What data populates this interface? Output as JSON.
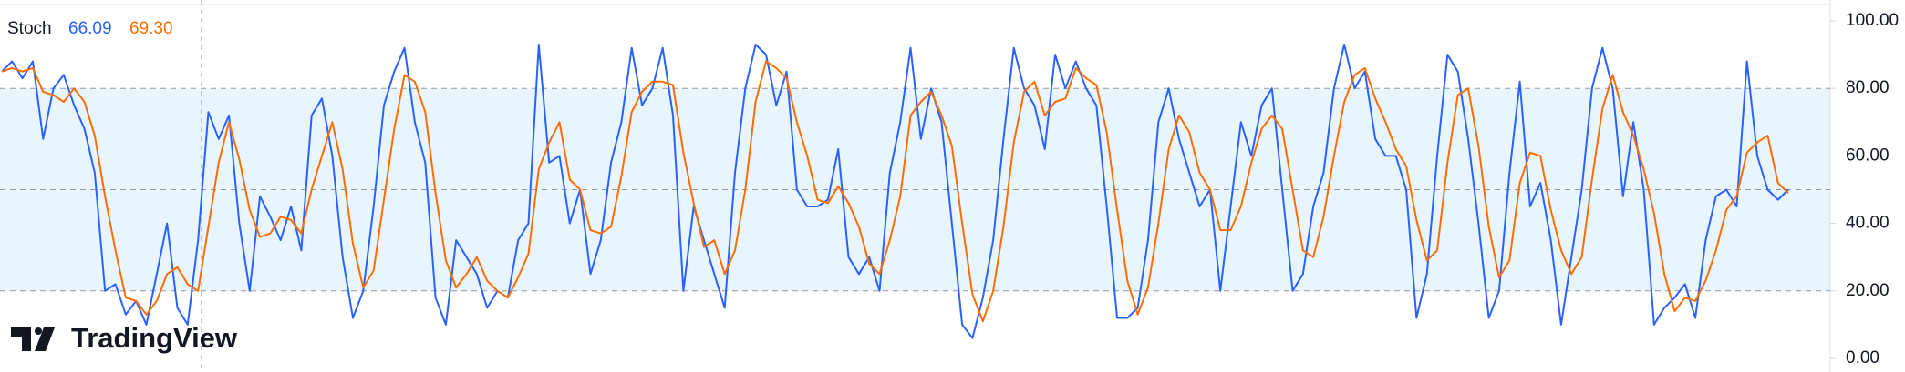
{
  "chart_data": {
    "type": "line",
    "title": "Stoch",
    "watermark": "TradingView",
    "legend_values": [
      {
        "value": 66.09,
        "label": "66.09"
      },
      {
        "value": 69.3,
        "label": "69.30"
      }
    ],
    "ylim": [
      0,
      100
    ],
    "yticks": [
      {
        "value": 0,
        "label": "0.00"
      },
      {
        "value": 20,
        "label": "20.00"
      },
      {
        "value": 40,
        "label": "40.00"
      },
      {
        "value": 60,
        "label": "60.00"
      },
      {
        "value": 80,
        "label": "80.00"
      },
      {
        "value": 100,
        "label": "100.00"
      }
    ],
    "bands": {
      "upper": 80,
      "middle": 50,
      "lower": 20
    },
    "series": [
      {
        "color": "#2962ff",
        "values": [
          85,
          88,
          83,
          88,
          65,
          80,
          84,
          75,
          68,
          55,
          20,
          22,
          13,
          17,
          10,
          25,
          40,
          15,
          10,
          35,
          73,
          65,
          72,
          40,
          20,
          48,
          42,
          35,
          45,
          32,
          72,
          77,
          60,
          30,
          12,
          20,
          45,
          75,
          85,
          92,
          70,
          58,
          18,
          10,
          35,
          30,
          25,
          15,
          20,
          18,
          35,
          40,
          93,
          58,
          60,
          40,
          50,
          25,
          35,
          58,
          70,
          92,
          75,
          80,
          92,
          72,
          20,
          45,
          35,
          25,
          15,
          55,
          80,
          93,
          90,
          75,
          85,
          50,
          45,
          45,
          47,
          62,
          30,
          25,
          30,
          20,
          55,
          70,
          92,
          65,
          80,
          70,
          40,
          10,
          6,
          18,
          35,
          65,
          92,
          80,
          75,
          62,
          90,
          80,
          88,
          80,
          75,
          45,
          12,
          12,
          15,
          35,
          70,
          80,
          65,
          55,
          45,
          50,
          20,
          45,
          70,
          60,
          75,
          80,
          50,
          20,
          25,
          45,
          55,
          80,
          93,
          80,
          85,
          65,
          60,
          60,
          50,
          12,
          25,
          60,
          90,
          85,
          65,
          40,
          12,
          20,
          55,
          82,
          45,
          52,
          35,
          10,
          30,
          50,
          80,
          92,
          80,
          48,
          70,
          50,
          10,
          15,
          18,
          22,
          12,
          35,
          48,
          50,
          45,
          88,
          60,
          50,
          47,
          50
        ]
      },
      {
        "color": "#ff6d00",
        "values": [
          85,
          86,
          85,
          86,
          79,
          78,
          76,
          80,
          76,
          66,
          48,
          32,
          18,
          17,
          13,
          17,
          25,
          27,
          22,
          20,
          39,
          58,
          70,
          59,
          44,
          36,
          37,
          42,
          41,
          37,
          50,
          60,
          70,
          56,
          34,
          21,
          26,
          47,
          68,
          84,
          82,
          73,
          49,
          29,
          21,
          25,
          30,
          23,
          20,
          18,
          24,
          31,
          56,
          64,
          70,
          53,
          50,
          38,
          37,
          39,
          54,
          73,
          79,
          82,
          82,
          81,
          61,
          46,
          33,
          35,
          25,
          32,
          50,
          76,
          88,
          86,
          83,
          70,
          60,
          47,
          46,
          51,
          46,
          39,
          28,
          25,
          35,
          48,
          72,
          76,
          79,
          72,
          63,
          40,
          19,
          11,
          20,
          39,
          64,
          79,
          82,
          72,
          76,
          77,
          86,
          83,
          81,
          67,
          44,
          23,
          13,
          21,
          40,
          62,
          72,
          67,
          55,
          50,
          38,
          38,
          45,
          58,
          68,
          72,
          68,
          50,
          32,
          30,
          42,
          60,
          76,
          84,
          86,
          77,
          70,
          62,
          57,
          41,
          29,
          32,
          58,
          78,
          80,
          63,
          39,
          24,
          29,
          52,
          61,
          60,
          44,
          32,
          25,
          30,
          53,
          74,
          84,
          73,
          66,
          56,
          43,
          25,
          14,
          18,
          17,
          23,
          32,
          44,
          48,
          61,
          64,
          66,
          52,
          49
        ]
      }
    ]
  }
}
